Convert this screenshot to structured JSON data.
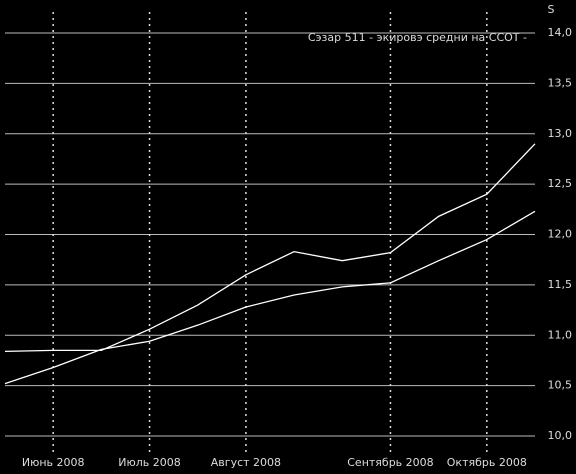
{
  "chart_data": {
    "type": "line",
    "title": "Сэзар 511 - экировэ средни на ССОТ -",
    "y_label": "S",
    "categories": [
      null,
      "Июнь 2008",
      null,
      "Июль 2008",
      null,
      "Август 2008",
      null,
      null,
      "Сентябрь 2008",
      null,
      "Октябрь 2008",
      null
    ],
    "series": [
      {
        "color": "#ffffff",
        "values": [
          10.84,
          10.85,
          10.85,
          11.06,
          11.3,
          11.6,
          11.83,
          11.74,
          11.82,
          12.18,
          12.4,
          12.9
        ]
      },
      {
        "color": "#ffffff",
        "values": [
          10.52,
          10.68,
          10.86,
          10.94,
          11.1,
          11.28,
          11.4,
          11.48,
          11.52,
          11.74,
          11.95,
          12.23
        ]
      }
    ],
    "ylim": [
      10.0,
      14.0
    ],
    "yticks": [
      {
        "value": 10.0,
        "label": "10,0"
      },
      {
        "value": 10.5,
        "label": "10,5"
      },
      {
        "value": 11.0,
        "label": "11,0"
      },
      {
        "value": 11.5,
        "label": "11,5"
      },
      {
        "value": 12.0,
        "label": "12,0"
      },
      {
        "value": 12.5,
        "label": "12,5"
      },
      {
        "value": 13.0,
        "label": "13,0"
      },
      {
        "value": 13.5,
        "label": "13,5"
      },
      {
        "value": 14.0,
        "label": "14,0"
      }
    ],
    "grid": true
  }
}
